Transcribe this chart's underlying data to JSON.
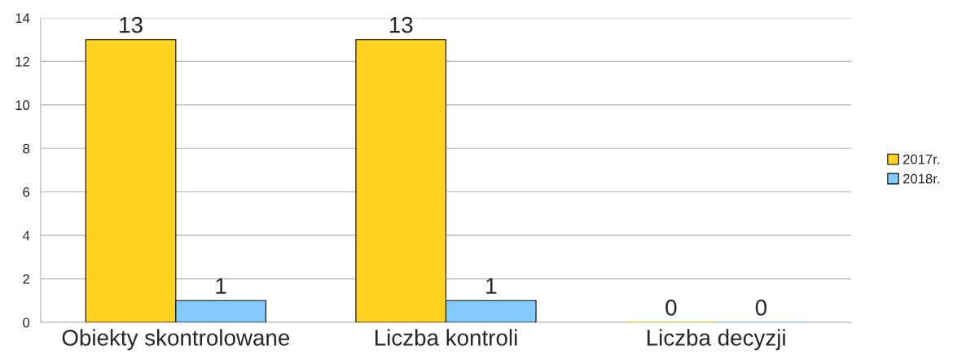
{
  "chart_data": {
    "type": "bar",
    "categories": [
      "Obiekty skontrolowane",
      "Liczba kontroli",
      "Liczba decyzji"
    ],
    "series": [
      {
        "name": "2017r.",
        "color": "#ffd320",
        "values": [
          13,
          13,
          0
        ]
      },
      {
        "name": "2018r.",
        "color": "#83caff",
        "values": [
          1,
          1,
          0
        ]
      }
    ],
    "ylim": [
      0,
      14
    ],
    "yticks": [
      0,
      2,
      4,
      6,
      8,
      10,
      12,
      14
    ],
    "grid": "y",
    "legend": "right",
    "data_labels": true
  }
}
